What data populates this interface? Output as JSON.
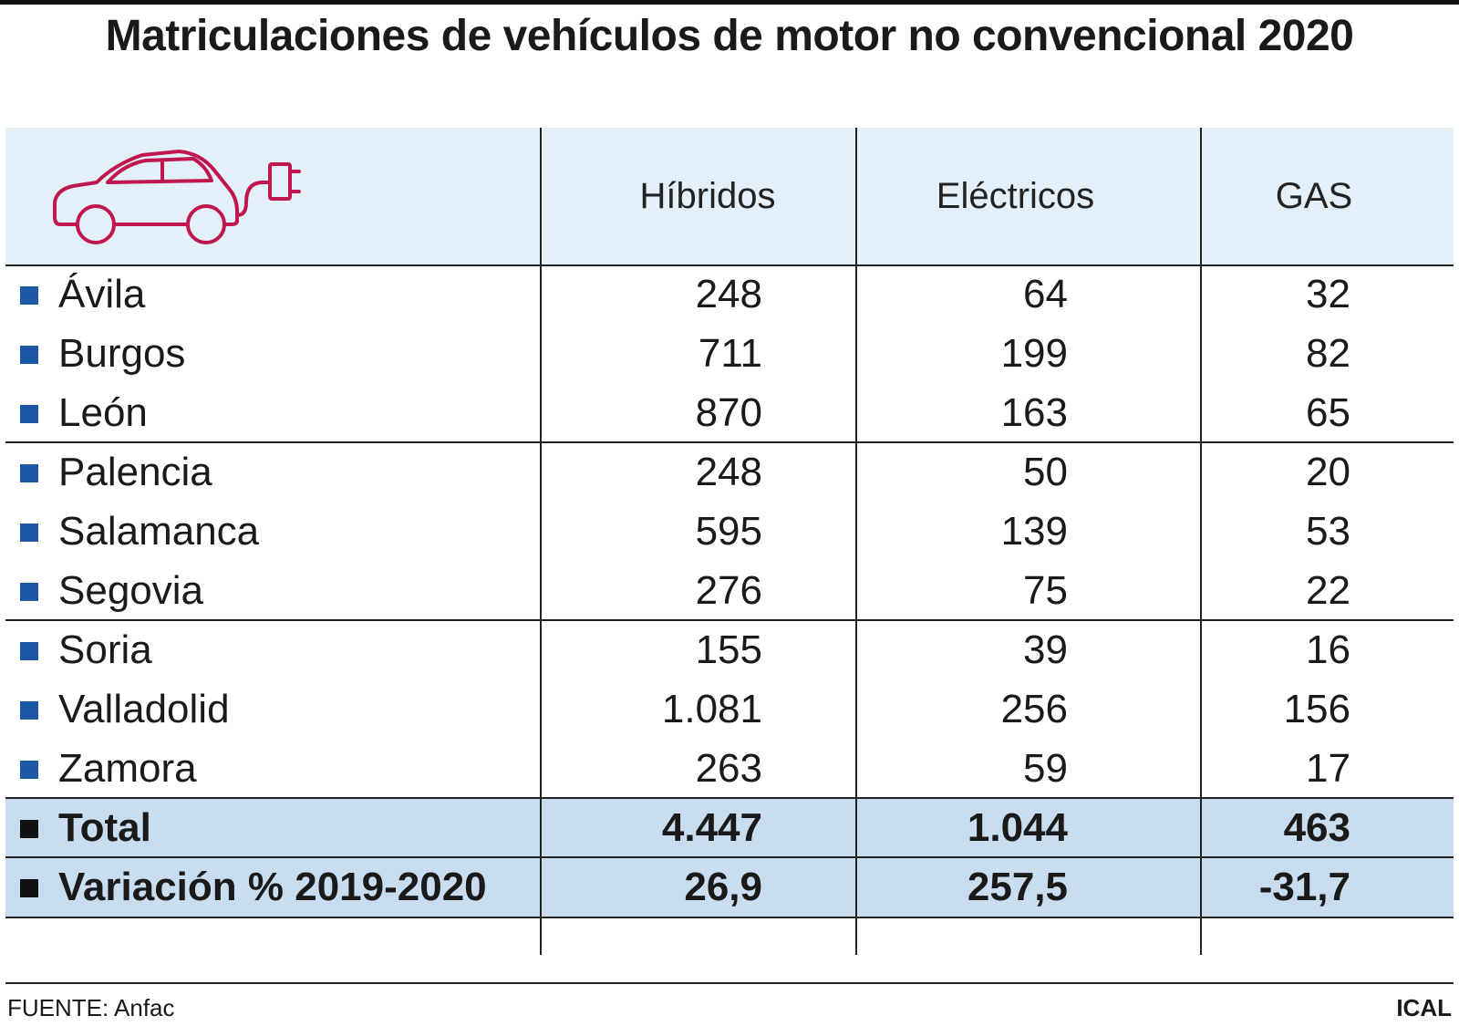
{
  "title": "Matriculaciones de vehículos de motor no convencional 2020",
  "icon": "electric-car-icon",
  "accent_color": "#c0174f",
  "bullet_color": "#1b57a5",
  "header_bg": "#e3f0f9",
  "total_bg": "#c8ddf0",
  "chart_data": {
    "type": "table",
    "title": "Matriculaciones de vehículos de motor no convencional 2020",
    "columns": [
      "Híbridos",
      "Eléctricos",
      "GAS"
    ],
    "rows": [
      {
        "name": "Ávila",
        "values": [
          "248",
          "64",
          "32"
        ]
      },
      {
        "name": "Burgos",
        "values": [
          "711",
          "199",
          "82"
        ]
      },
      {
        "name": "León",
        "values": [
          "870",
          "163",
          "65"
        ]
      },
      {
        "name": "Palencia",
        "values": [
          "248",
          "50",
          "20"
        ]
      },
      {
        "name": "Salamanca",
        "values": [
          "595",
          "139",
          "53"
        ]
      },
      {
        "name": "Segovia",
        "values": [
          "276",
          "75",
          "22"
        ]
      },
      {
        "name": "Soria",
        "values": [
          "155",
          "39",
          "16"
        ]
      },
      {
        "name": "Valladolid",
        "values": [
          "1.081",
          "256",
          "156"
        ]
      },
      {
        "name": "Zamora",
        "values": [
          "263",
          "59",
          "17"
        ]
      }
    ],
    "totals": [
      {
        "name": "Total",
        "values": [
          "4.447",
          "1.044",
          "463"
        ]
      },
      {
        "name": "Variación % 2019-2020",
        "values": [
          "26,9",
          "257,5",
          "-31,7"
        ]
      }
    ]
  },
  "footer": {
    "source": "FUENTE: Anfac",
    "brand": "ICAL"
  }
}
